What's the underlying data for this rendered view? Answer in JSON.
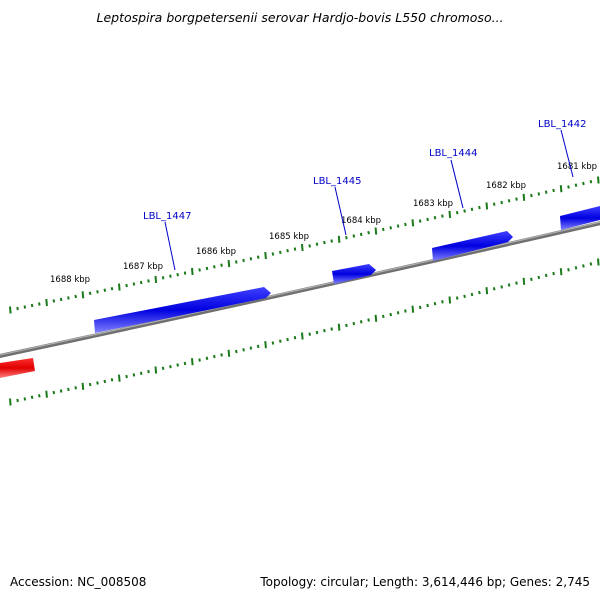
{
  "title": "Leptospira borgpetersenii serovar Hardjo-bovis L550 chromoso...",
  "footer": {
    "accession": "Accession: NC_008508",
    "summary": "Topology: circular; Length: 3,614,446 bp; Genes: 2,745"
  },
  "ticks": [
    {
      "label": "1688 kbp"
    },
    {
      "label": "1687 kbp"
    },
    {
      "label": "1686 kbp"
    },
    {
      "label": "1685 kbp"
    },
    {
      "label": "1684 kbp"
    },
    {
      "label": "1683 kbp"
    },
    {
      "label": "1682 kbp"
    },
    {
      "label": "1681 kbp"
    }
  ],
  "gene_labels": [
    {
      "label": "LBL_1447"
    },
    {
      "label": "LBL_1445"
    },
    {
      "label": "LBL_1444"
    },
    {
      "label": "LBL_1442"
    }
  ],
  "colors": {
    "forward_gene": "#0000e6",
    "reverse_gene": "#e60000",
    "backbone": "#808080",
    "ticks": "#1a7a1a",
    "gene_label": "#0000c8"
  }
}
